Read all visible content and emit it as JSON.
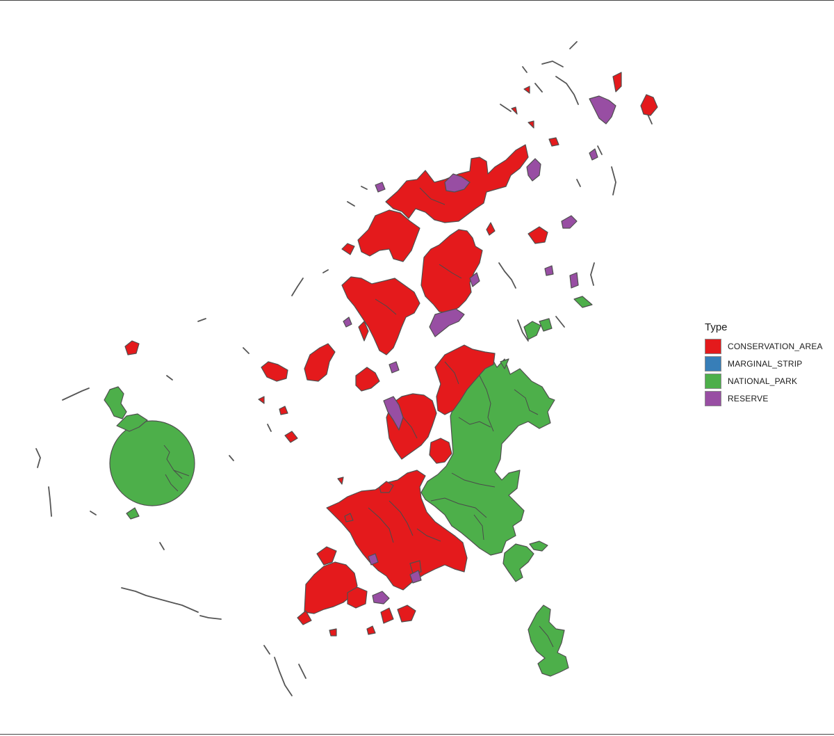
{
  "legend": {
    "title": "Type",
    "items": [
      {
        "key": "conservation_area",
        "label": "CONSERVATION_AREA",
        "color": "#E41A1C"
      },
      {
        "key": "marginal_strip",
        "label": "MARGINAL_STRIP",
        "color": "#377EB8"
      },
      {
        "key": "national_park",
        "label": "NATIONAL_PARK",
        "color": "#4DAF4A"
      },
      {
        "key": "reserve",
        "label": "RESERVE",
        "color": "#984EA3"
      }
    ]
  },
  "colors": {
    "background": "#FFFFFF",
    "boundary": "#555555"
  }
}
